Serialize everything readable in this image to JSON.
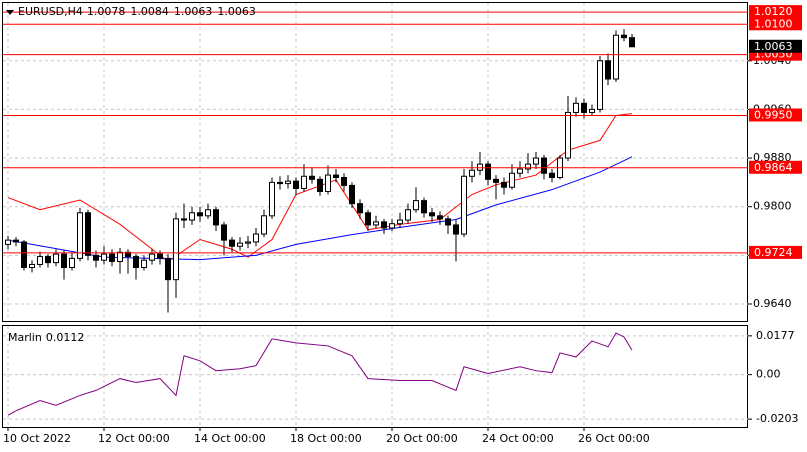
{
  "chart_data": {
    "type": "candlestick",
    "symbol": "EURUSD,H4",
    "candles": [
      [
        0.9738,
        0.9752,
        0.973,
        0.9745
      ],
      [
        0.9745,
        0.975,
        0.9735,
        0.9742
      ],
      [
        0.9742,
        0.9745,
        0.9695,
        0.97
      ],
      [
        0.97,
        0.9712,
        0.9692,
        0.9705
      ],
      [
        0.9705,
        0.9726,
        0.97,
        0.9718
      ],
      [
        0.9718,
        0.9722,
        0.97,
        0.9708
      ],
      [
        0.9708,
        0.973,
        0.9702,
        0.9722
      ],
      [
        0.9722,
        0.9728,
        0.968,
        0.97
      ],
      [
        0.97,
        0.9725,
        0.9695,
        0.9715
      ],
      [
        0.9715,
        0.9798,
        0.971,
        0.979
      ],
      [
        0.979,
        0.9795,
        0.9712,
        0.972
      ],
      [
        0.972,
        0.9728,
        0.97,
        0.9712
      ],
      [
        0.9712,
        0.9735,
        0.9705,
        0.9722
      ],
      [
        0.9722,
        0.973,
        0.9702,
        0.971
      ],
      [
        0.971,
        0.9732,
        0.969,
        0.9725
      ],
      [
        0.9725,
        0.973,
        0.969,
        0.9718
      ],
      [
        0.9718,
        0.9722,
        0.968,
        0.97
      ],
      [
        0.97,
        0.972,
        0.9695,
        0.9712
      ],
      [
        0.9712,
        0.973,
        0.9705,
        0.9722
      ],
      [
        0.9722,
        0.9728,
        0.9705,
        0.9715
      ],
      [
        0.9715,
        0.9722,
        0.9626,
        0.968
      ],
      [
        0.968,
        0.979,
        0.965,
        0.978
      ],
      [
        0.978,
        0.9805,
        0.9765,
        0.9778
      ],
      [
        0.9778,
        0.98,
        0.977,
        0.979
      ],
      [
        0.979,
        0.98,
        0.9775,
        0.9785
      ],
      [
        0.9785,
        0.9805,
        0.978,
        0.9795
      ],
      [
        0.9795,
        0.98,
        0.976,
        0.977
      ],
      [
        0.977,
        0.9775,
        0.972,
        0.9745
      ],
      [
        0.9745,
        0.975,
        0.9725,
        0.9735
      ],
      [
        0.9735,
        0.975,
        0.9728,
        0.974
      ],
      [
        0.974,
        0.9752,
        0.9732,
        0.9742
      ],
      [
        0.9742,
        0.9765,
        0.9735,
        0.9755
      ],
      [
        0.9755,
        0.9795,
        0.975,
        0.9785
      ],
      [
        0.9785,
        0.9848,
        0.978,
        0.984
      ],
      [
        0.984,
        0.985,
        0.9828,
        0.9838
      ],
      [
        0.9838,
        0.9852,
        0.983,
        0.9842
      ],
      [
        0.9842,
        0.9848,
        0.982,
        0.983
      ],
      [
        0.983,
        0.987,
        0.9825,
        0.985
      ],
      [
        0.985,
        0.9865,
        0.9838,
        0.9845
      ],
      [
        0.9845,
        0.985,
        0.9818,
        0.9825
      ],
      [
        0.9825,
        0.9868,
        0.982,
        0.9852
      ],
      [
        0.9852,
        0.9862,
        0.984,
        0.9848
      ],
      [
        0.9848,
        0.9855,
        0.9825,
        0.9835
      ],
      [
        0.9835,
        0.984,
        0.9798,
        0.9805
      ],
      [
        0.9805,
        0.9812,
        0.978,
        0.979
      ],
      [
        0.979,
        0.9795,
        0.976,
        0.977
      ],
      [
        0.977,
        0.9785,
        0.9765,
        0.9775
      ],
      [
        0.9775,
        0.978,
        0.9755,
        0.9765
      ],
      [
        0.9765,
        0.978,
        0.976,
        0.9772
      ],
      [
        0.9772,
        0.979,
        0.9765,
        0.9778
      ],
      [
        0.9778,
        0.9805,
        0.9772,
        0.9795
      ],
      [
        0.9795,
        0.9832,
        0.979,
        0.981
      ],
      [
        0.981,
        0.9815,
        0.9782,
        0.979
      ],
      [
        0.979,
        0.9798,
        0.9775,
        0.9785
      ],
      [
        0.9785,
        0.9792,
        0.977,
        0.978
      ],
      [
        0.978,
        0.9785,
        0.9755,
        0.977
      ],
      [
        0.977,
        0.9778,
        0.971,
        0.9755
      ],
      [
        0.9755,
        0.9862,
        0.975,
        0.985
      ],
      [
        0.985,
        0.9875,
        0.984,
        0.986
      ],
      [
        0.986,
        0.989,
        0.9852,
        0.987
      ],
      [
        0.987,
        0.9875,
        0.9835,
        0.9845
      ],
      [
        0.9845,
        0.9852,
        0.9812,
        0.984
      ],
      [
        0.984,
        0.9848,
        0.982,
        0.9832
      ],
      [
        0.9832,
        0.987,
        0.9828,
        0.9855
      ],
      [
        0.9855,
        0.9875,
        0.9848,
        0.9862
      ],
      [
        0.9862,
        0.9888,
        0.9855,
        0.987
      ],
      [
        0.987,
        0.989,
        0.9862,
        0.988
      ],
      [
        0.988,
        0.9885,
        0.9845,
        0.9855
      ],
      [
        0.9855,
        0.9862,
        0.984,
        0.9848
      ],
      [
        0.9848,
        0.9885,
        0.9845,
        0.988
      ],
      [
        0.988,
        0.9982,
        0.9875,
        0.9955
      ],
      [
        0.9955,
        0.998,
        0.9948,
        0.997
      ],
      [
        0.997,
        0.9978,
        0.9945,
        0.9955
      ],
      [
        0.9955,
        0.9968,
        0.995,
        0.996
      ],
      [
        0.996,
        1.0048,
        0.9955,
        1.004
      ],
      [
        1.004,
        1.0052,
        1.0,
        1.001
      ],
      [
        1.001,
        1.009,
        1.0005,
        1.0082
      ],
      [
        1.0082,
        1.0092,
        1.0072,
        1.0078
      ],
      [
        1.0078,
        1.0084,
        1.0063,
        1.0063
      ]
    ],
    "up_color": "#ffffff",
    "down_color": "#000000",
    "ylim": [
      0.9612,
      1.0135
    ],
    "yticks": [
      {
        "value": 1.004,
        "label": "1.0040"
      },
      {
        "value": 0.996,
        "label": "0.9960"
      },
      {
        "value": 0.988,
        "label": "0.9880"
      },
      {
        "value": 0.98,
        "label": "0.9800"
      },
      {
        "value": 0.972,
        "label": "0.9720"
      },
      {
        "value": 0.964,
        "label": "0.9640"
      }
    ],
    "xticks": [
      {
        "value": 0,
        "label": "10 Oct 2022"
      },
      {
        "value": 12,
        "label": "12 Oct 00:00"
      },
      {
        "value": 24,
        "label": "14 Oct 00:00"
      },
      {
        "value": 36,
        "label": "18 Oct 00:00"
      },
      {
        "value": 48,
        "label": "20 Oct 00:00"
      },
      {
        "value": 60,
        "label": "24 Oct 00:00"
      },
      {
        "value": 72,
        "label": "26 Oct 00:00"
      }
    ],
    "grid": true,
    "level_color": "#ff0000",
    "levels": [
      {
        "value": 1.012,
        "label": "1.0120"
      },
      {
        "value": 1.01,
        "label": "1.0100"
      },
      {
        "value": 1.005,
        "label": "1.0050"
      },
      {
        "value": 0.995,
        "label": "0.9950"
      },
      {
        "value": 0.9864,
        "label": "0.9864"
      },
      {
        "value": 0.9724,
        "label": "0.9724"
      }
    ],
    "lines": [
      {
        "color": "#ff0000",
        "x": [
          0,
          4,
          9,
          14,
          20,
          24,
          28,
          30,
          33,
          36,
          41,
          45,
          49,
          54,
          58,
          61,
          66,
          70,
          74,
          76,
          78
        ],
        "values": [
          0.9815,
          0.9795,
          0.9811,
          0.9771,
          0.971,
          0.9746,
          0.973,
          0.9717,
          0.9746,
          0.982,
          0.9844,
          0.9762,
          0.9771,
          0.9779,
          0.982,
          0.9836,
          0.9852,
          0.9893,
          0.9909,
          0.995,
          0.9953
        ]
      },
      {
        "color": "#0000ff",
        "x": [
          0,
          12,
          24,
          31,
          36,
          43,
          49,
          56,
          61,
          68,
          74,
          78
        ],
        "values": [
          0.9745,
          0.9717,
          0.9713,
          0.972,
          0.9738,
          0.9754,
          0.9766,
          0.9779,
          0.9803,
          0.9828,
          0.9857,
          0.9882
        ]
      }
    ],
    "indicator": {
      "name": "Marlin",
      "value": 0.0112,
      "color": "#800080",
      "ylim": [
        -0.0239,
        0.0222
      ],
      "yticks": [
        0.0177,
        {
          "value": 0,
          "label": "0.00"
        },
        -0.0203
      ],
      "x": [
        0,
        1,
        4,
        6,
        9,
        11,
        14,
        16,
        19,
        21,
        22,
        24,
        26,
        29,
        31,
        33,
        36,
        40,
        43,
        45,
        49,
        53,
        56,
        57,
        60,
        64,
        66,
        68,
        69,
        71,
        73,
        75,
        76,
        77,
        78
      ],
      "values": [
        -0.0185,
        -0.0165,
        -0.0118,
        -0.014,
        -0.0095,
        -0.0072,
        -0.0018,
        -0.0036,
        -0.0018,
        -0.0095,
        0.0086,
        0.0063,
        0.0018,
        0.0027,
        0.0041,
        0.0163,
        0.0145,
        0.0131,
        0.0086,
        -0.0018,
        -0.0027,
        -0.0027,
        -0.0072,
        0.0036,
        0.0005,
        0.0036,
        0.0018,
        0.0009,
        0.0099,
        0.0081,
        0.0154,
        0.0127,
        0.019,
        0.0172,
        0.0112
      ]
    }
  }
}
